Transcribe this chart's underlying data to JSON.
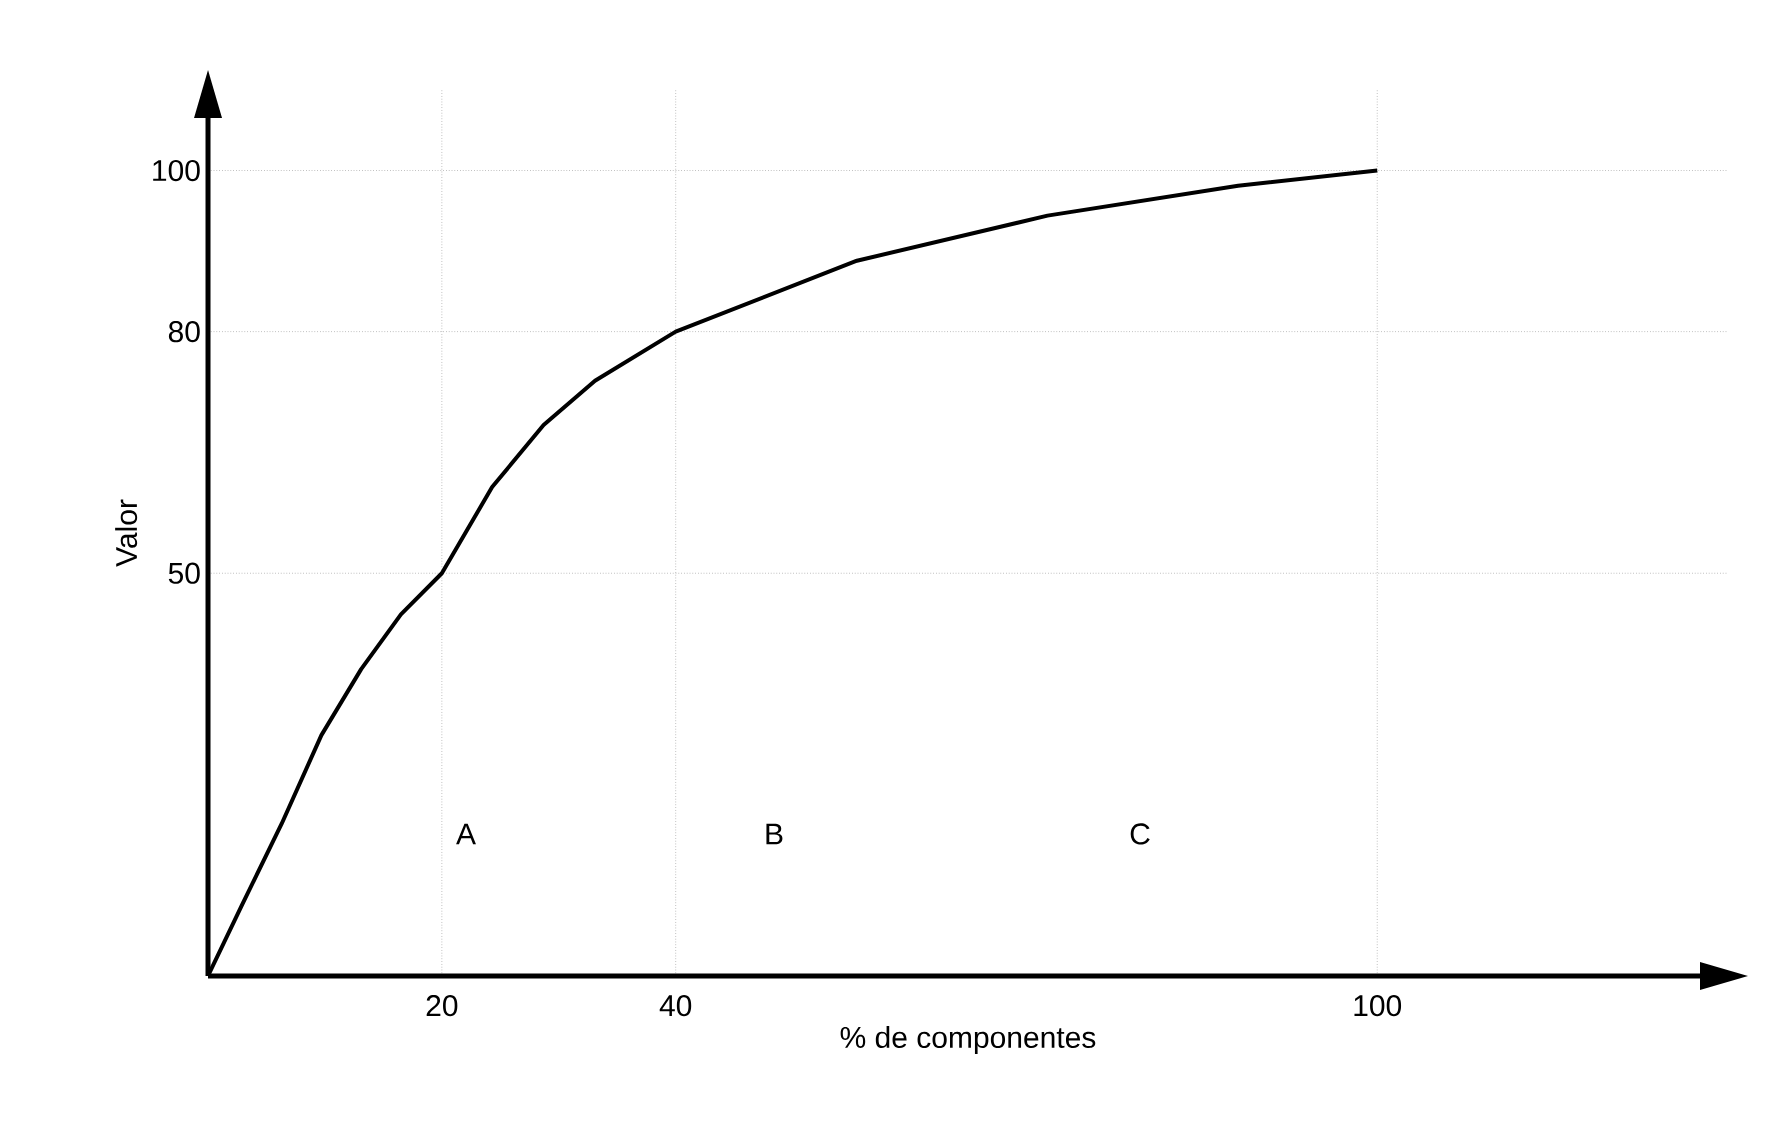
{
  "chart_data": {
    "type": "line",
    "xlabel": "% de componentes",
    "ylabel": "Valor",
    "xlim": [
      0,
      130
    ],
    "ylim": [
      0,
      110
    ],
    "xticks": [
      20,
      40,
      100
    ],
    "yticks": [
      50,
      80,
      100
    ],
    "grid": true,
    "color": "#000000",
    "x": [
      0,
      2.9,
      6.3,
      9.7,
      13.1,
      16.5,
      20,
      24.3,
      28.7,
      33.1,
      40,
      55.5,
      71.8,
      88.1,
      100
    ],
    "values": [
      0,
      8.8,
      18.9,
      29.9,
      38.1,
      44.9,
      50,
      60.7,
      68.4,
      73.9,
      80,
      88.8,
      94.4,
      98.1,
      100
    ],
    "annotations": [
      "A",
      "B",
      "C"
    ]
  }
}
